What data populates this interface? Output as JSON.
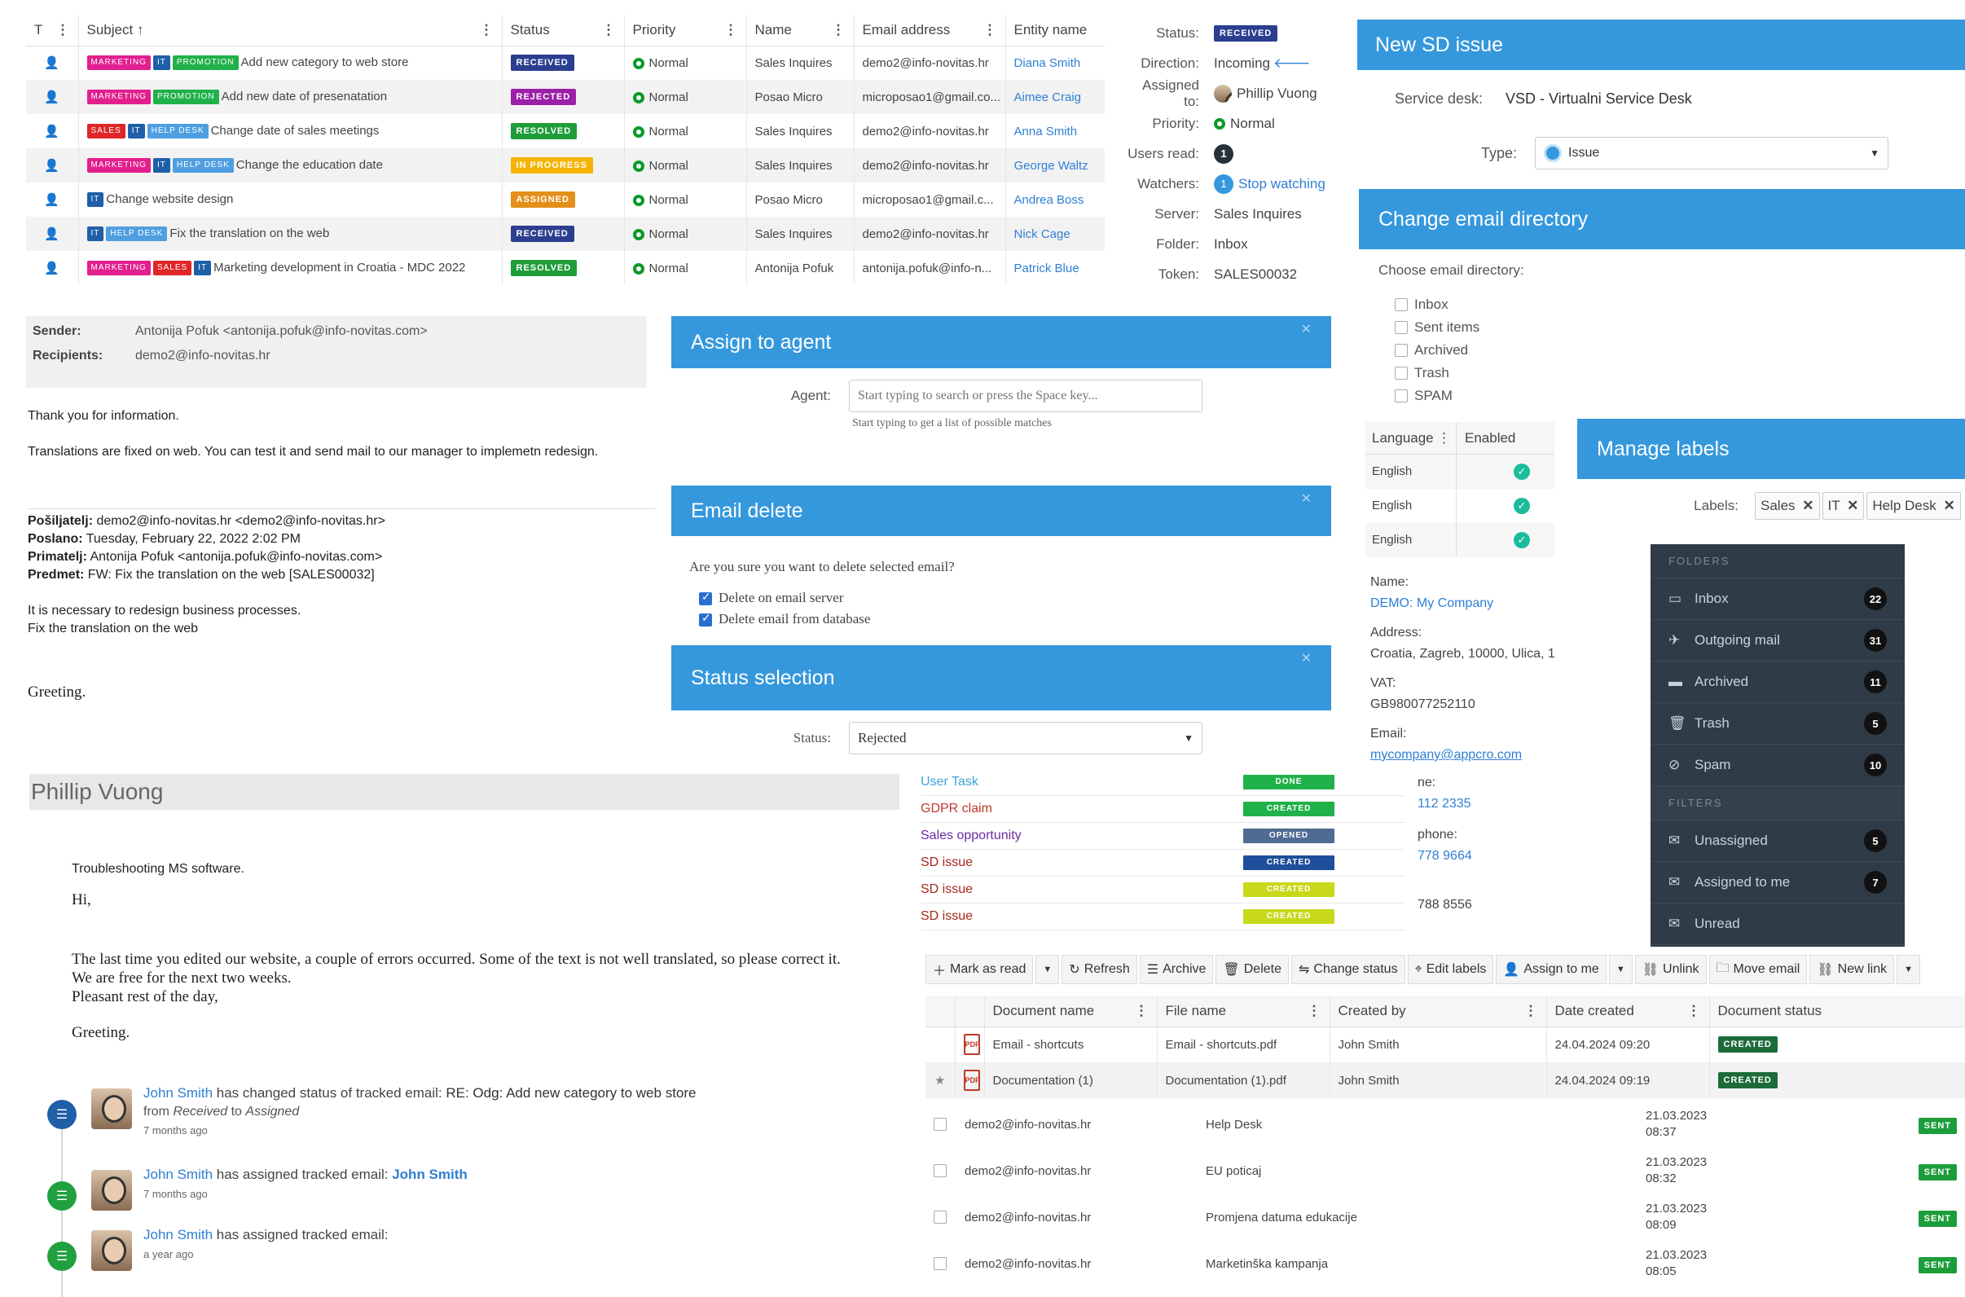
{
  "tickets": {
    "columns": {
      "t": "T",
      "subject": "Subject",
      "status": "Status",
      "priority": "Priority",
      "name": "Name",
      "email": "Email address",
      "entity": "Entity name"
    },
    "rows": [
      {
        "tags": [
          {
            "t": "MARKETING",
            "c": "#e21f8f"
          },
          {
            "t": "IT",
            "c": "#1e5fa8"
          },
          {
            "t": "PROMOTION",
            "c": "#21b14a"
          }
        ],
        "subject": "Add new category to web store",
        "status": "RECEIVED",
        "status_color": "#2c3e8f",
        "priority": "Normal",
        "name": "Sales Inquires",
        "email": "demo2@info-novitas.hr",
        "entity": "Diana Smith"
      },
      {
        "tags": [
          {
            "t": "MARKETING",
            "c": "#e21f8f"
          },
          {
            "t": "PROMOTION",
            "c": "#21b14a"
          }
        ],
        "subject": "Add new date of presenatation",
        "status": "REJECTED",
        "status_color": "#9b1fa8",
        "priority": "Normal",
        "name": "Posao Micro",
        "email": "microposao1@gmail.co...",
        "entity": "Aimee Craig"
      },
      {
        "tags": [
          {
            "t": "SALES",
            "c": "#e02626"
          },
          {
            "t": "IT",
            "c": "#1e5fa8"
          },
          {
            "t": "HELP DESK",
            "c": "#4f9fe0"
          }
        ],
        "subject": "Change date of sales meetings",
        "status": "RESOLVED",
        "status_color": "#1f9d3a",
        "priority": "Normal",
        "name": "Sales Inquires",
        "email": "demo2@info-novitas.hr",
        "entity": "Anna Smith"
      },
      {
        "tags": [
          {
            "t": "MARKETING",
            "c": "#e21f8f"
          },
          {
            "t": "IT",
            "c": "#1e5fa8"
          },
          {
            "t": "HELP DESK",
            "c": "#4f9fe0"
          }
        ],
        "subject": "Change the education date",
        "status": "IN PROGRESS",
        "status_color": "#f5b400",
        "priority": "Normal",
        "name": "Sales Inquires",
        "email": "demo2@info-novitas.hr",
        "entity": "George Waltz"
      },
      {
        "tags": [
          {
            "t": "IT",
            "c": "#1e5fa8"
          }
        ],
        "subject": "Change website design",
        "status": "ASSIGNED",
        "status_color": "#e38f1a",
        "priority": "Normal",
        "name": "Posao Micro",
        "email": "microposao1@gmail.c...",
        "entity": "Andrea Boss"
      },
      {
        "tags": [
          {
            "t": "IT",
            "c": "#1e5fa8"
          },
          {
            "t": "HELP DESK",
            "c": "#4f9fe0"
          }
        ],
        "subject": "Fix the translation on the web",
        "status": "RECEIVED",
        "status_color": "#2c3e8f",
        "priority": "Normal",
        "name": "Sales Inquires",
        "email": "demo2@info-novitas.hr",
        "entity": "Nick Cage"
      },
      {
        "tags": [
          {
            "t": "MARKETING",
            "c": "#e21f8f"
          },
          {
            "t": "SALES",
            "c": "#e02626"
          },
          {
            "t": "IT",
            "c": "#1e5fa8"
          }
        ],
        "subject": "Marketing development in Croatia - MDC 2022",
        "status": "RESOLVED",
        "status_color": "#1f9d3a",
        "priority": "Normal",
        "name": "Antonija Pofuk",
        "email": "antonija.pofuk@info-n...",
        "entity": "Patrick Blue"
      }
    ]
  },
  "details": {
    "status_l": "Status:",
    "status_v": "RECEIVED",
    "direction_l": "Direction:",
    "direction_v": "Incoming",
    "assigned_l": "Assigned to:",
    "assigned_v": "Phillip Vuong",
    "priority_l": "Priority:",
    "priority_v": "Normal",
    "users_read_l": "Users read:",
    "users_read_v": "1",
    "watchers_l": "Watchers:",
    "watchers_count": "1",
    "watchers_v": "Stop watching",
    "server_l": "Server:",
    "server_v": "Sales Inquires",
    "folder_l": "Folder:",
    "folder_v": "Inbox",
    "token_l": "Token:",
    "token_v": "SALES00032"
  },
  "new_sd": {
    "title": "New SD issue",
    "sd_l": "Service desk:",
    "sd_v": "VSD - Virtualni Service Desk",
    "type_l": "Type:",
    "type_v": "Issue"
  },
  "email_dir": {
    "title": "Change email directory",
    "prompt": "Choose email directory:",
    "items": [
      "Inbox",
      "Sent items",
      "Archived",
      "Trash",
      "SPAM"
    ]
  },
  "email_view": {
    "sender_l": "Sender:",
    "sender_v": "Antonija Pofuk  <antonija.pofuk@info-novitas.com>",
    "recip_l": "Recipients:",
    "recip_v": "demo2@info-novitas.hr",
    "p1": "Thank you for information.",
    "p2": "Translations are fixed on web. You can test it and send mail to our manager to implemetn redesign.",
    "f1_l": "Pošiljatelj:",
    "f1_v": " demo2@info-novitas.hr <demo2@info-novitas.hr>",
    "f2_l": "Poslano:",
    "f2_v": " Tuesday, February 22, 2022 2:02 PM",
    "f3_l": "Primatelj:",
    "f3_v": " Antonija Pofuk <antonija.pofuk@info-novitas.com>",
    "f4_l": "Predmet:",
    "f4_v": " FW: Fix the translation on the web [SALES00032]",
    "p3": "It is necessary to redesign business processes.",
    "p4": "Fix the translation on the web",
    "p5": "Greeting."
  },
  "assign": {
    "title": "Assign to agent",
    "agent_l": "Agent:",
    "placeholder": "Start typing to search or press the Space key...",
    "hint": "Start typing to get a list of possible matches"
  },
  "email_delete": {
    "title": "Email delete",
    "question": "Are you sure you want to delete selected email?",
    "opt1": "Delete on email server",
    "opt2": "Delete email from database"
  },
  "status_sel": {
    "title": "Status selection",
    "status_l": "Status:",
    "status_v": "Rejected"
  },
  "languages": {
    "col1": "Language",
    "col2": "Enabled",
    "rows": [
      "English",
      "English",
      "English"
    ]
  },
  "company": {
    "name_l": "Name:",
    "name_v": "DEMO: My Company",
    "addr_l": "Address:",
    "addr_v": "Croatia, Zagreb, 10000, Ulica, 1",
    "vat_l": "VAT:",
    "vat_v": "GB980077252110",
    "email_l": "Email:",
    "email_v": "mycompany@appcro.com",
    "phone1_l": "ne:",
    "phone1_v": "112 2335",
    "phone2_l": "phone:",
    "phone2_v": "778 9664",
    "phone3_v": "788 8556"
  },
  "labels": {
    "title": "Manage labels",
    "labels_l": "Labels:",
    "items": [
      "Sales",
      "IT",
      "Help Desk"
    ]
  },
  "folders": {
    "folders_h": "FOLDERS",
    "items": [
      {
        "n": "Inbox",
        "c": "22",
        "i": "▭"
      },
      {
        "n": "Outgoing mail",
        "c": "31",
        "i": "✈"
      },
      {
        "n": "Archived",
        "c": "11",
        "i": "▬"
      },
      {
        "n": "Trash",
        "c": "5",
        "i": "🗑"
      },
      {
        "n": "Spam",
        "c": "10",
        "i": "⊘"
      }
    ],
    "filters_h": "FILTERS",
    "filters": [
      {
        "n": "Unassigned",
        "c": "5",
        "i": "✉"
      },
      {
        "n": "Assigned to me",
        "c": "7",
        "i": "✉"
      },
      {
        "n": "Unread",
        "c": "",
        "i": "✉"
      }
    ]
  },
  "activities": [
    {
      "n": "User Task",
      "c": "#3aa5d8",
      "s": "DONE",
      "sc": "#21b14a"
    },
    {
      "n": "GDPR claim",
      "c": "#c0392b",
      "s": "CREATED",
      "sc": "#21b14a"
    },
    {
      "n": "Sales opportunity",
      "c": "#6c2aa0",
      "s": "OPENED",
      "sc": "#4f6b94"
    },
    {
      "n": "SD issue",
      "c": "#a6281c",
      "s": "CREATED",
      "sc": "#1e4f9a"
    },
    {
      "n": "SD issue",
      "c": "#a6281c",
      "s": "CREATED",
      "sc": "#c8d81a"
    },
    {
      "n": "SD issue",
      "c": "#a6281c",
      "s": "CREATED",
      "sc": "#c8d81a"
    }
  ],
  "person": {
    "name": "Phillip Vuong",
    "subject": "Troubleshooting MS software.",
    "hi": "Hi,",
    "b1": "The last time you edited our website, a couple of errors occurred. Some of the text is not well translated, so please correct it.",
    "b2": "We are free for the next two weeks.",
    "b3": "Pleasant rest of the day,",
    "b4": "Greeting."
  },
  "timeline": [
    {
      "who": "John Smith",
      "what": " has changed status of tracked email: ",
      "subj": "RE: Odg: Add new category to web store",
      "from_l": "from ",
      "from": "Received",
      "to_l": " to ",
      "to": "Assigned",
      "ago": "7 months ago",
      "c": "#1e5fa8"
    },
    {
      "who": "John Smith",
      "what": " has assigned tracked email: ",
      "subj": "John Smith",
      "ago": "7 months ago",
      "c": "#21a040"
    },
    {
      "who": "John Smith",
      "what": " has assigned tracked email:",
      "subj": "",
      "ago": "a year ago",
      "c": "#21a040"
    }
  ],
  "toolbar": {
    "mark": "Mark as read",
    "refresh": "Refresh",
    "archive": "Archive",
    "delete": "Delete",
    "change_status": "Change status",
    "edit_labels": "Edit labels",
    "assign_me": "Assign to me",
    "unlink": "Unlink",
    "move": "Move email",
    "new_link": "New link"
  },
  "documents": {
    "cols": {
      "name": "Document name",
      "file": "File name",
      "by": "Created by",
      "date": "Date created",
      "status": "Document status"
    },
    "rows": [
      {
        "name": "Email - shortcuts",
        "file": "Email - shortcuts.pdf",
        "by": "John Smith",
        "date": "24.04.2024 09:20",
        "status": "CREATED"
      },
      {
        "name": "Documentation (1)",
        "file": "Documentation (1).pdf",
        "by": "John Smith",
        "date": "24.04.2024 09:19",
        "status": "CREATED"
      }
    ]
  },
  "sent": [
    {
      "from": "demo2@info-novitas.hr",
      "subj": "Help Desk",
      "d": "21.03.2023",
      "t": "08:37",
      "s": "SENT"
    },
    {
      "from": "demo2@info-novitas.hr",
      "subj": "EU poticaj",
      "d": "21.03.2023",
      "t": "08:32",
      "s": "SENT"
    },
    {
      "from": "demo2@info-novitas.hr",
      "subj": "Promjena datuma edukacije",
      "d": "21.03.2023",
      "t": "08:09",
      "s": "SENT"
    },
    {
      "from": "demo2@info-novitas.hr",
      "subj": "Marketinška kampanja",
      "d": "21.03.2023",
      "t": "08:05",
      "s": "SENT"
    }
  ]
}
